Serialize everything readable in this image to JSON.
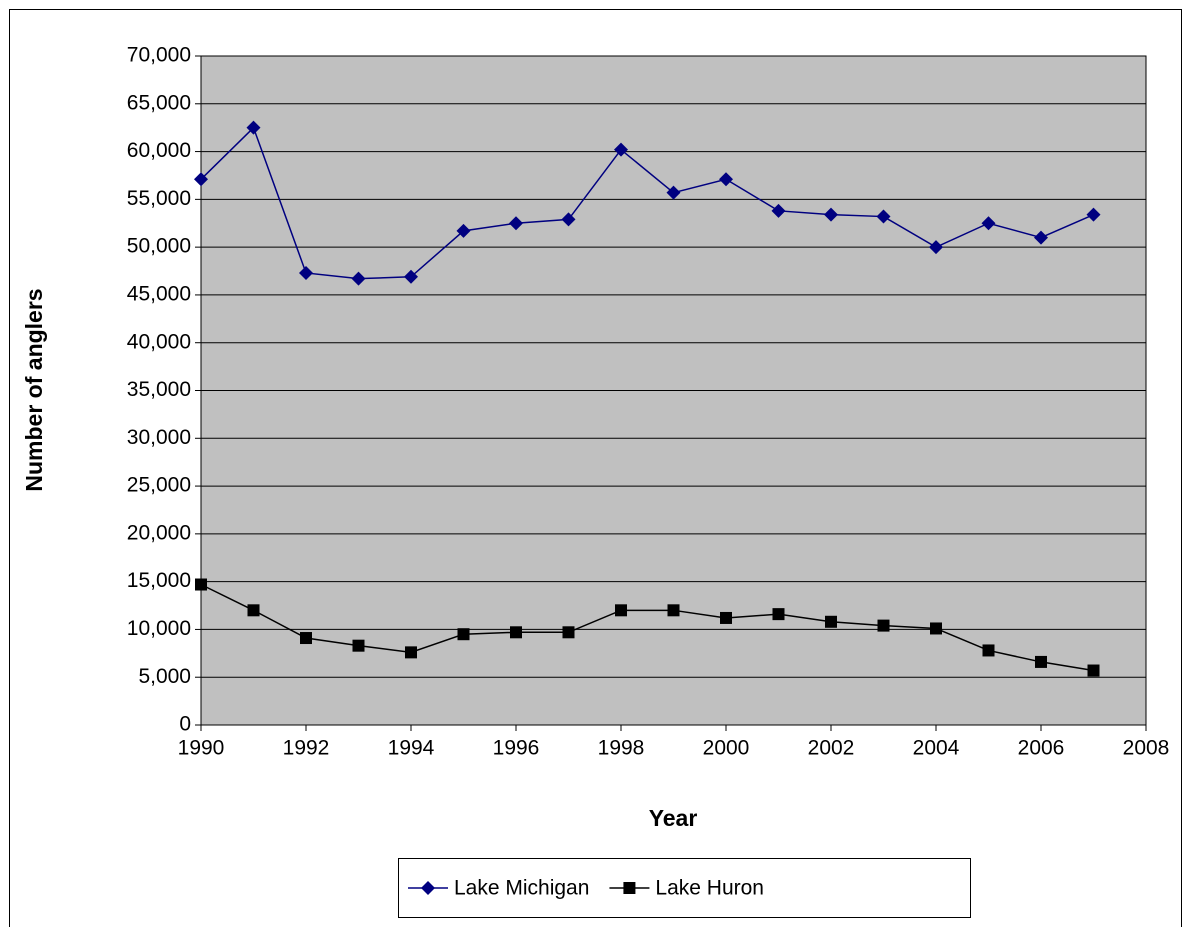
{
  "chart_data": {
    "type": "line",
    "x_label": "Year",
    "y_label": "Number of anglers",
    "x": [
      1990,
      1991,
      1992,
      1993,
      1994,
      1995,
      1996,
      1997,
      1998,
      1999,
      2000,
      2001,
      2002,
      2003,
      2004,
      2005,
      2006,
      2007
    ],
    "series": [
      {
        "name": "Lake Michigan",
        "color": "#000080",
        "marker": "diamond",
        "values": [
          57100,
          62500,
          47300,
          46700,
          46900,
          51700,
          52500,
          52900,
          60200,
          55700,
          57100,
          53800,
          53400,
          53200,
          50000,
          52500,
          51000,
          53400
        ]
      },
      {
        "name": "Lake Huron",
        "color": "#000000",
        "marker": "square",
        "values": [
          14700,
          12000,
          9100,
          8300,
          7600,
          9500,
          9700,
          9700,
          12000,
          12000,
          11200,
          11600,
          10800,
          10400,
          10100,
          7800,
          6600,
          5700
        ]
      }
    ],
    "xlim": [
      1990,
      2008
    ],
    "xticks": [
      1990,
      1992,
      1994,
      1996,
      1998,
      2000,
      2002,
      2004,
      2006,
      2008
    ],
    "ylim": [
      0,
      70000
    ],
    "yticks": [
      0,
      {
        "value": 5000,
        "label": "5,000"
      },
      {
        "value": 10000,
        "label": "10,000"
      },
      {
        "value": 15000,
        "label": "15,000"
      },
      {
        "value": 20000,
        "label": "20,000"
      },
      {
        "value": 25000,
        "label": "25,000"
      },
      {
        "value": 30000,
        "label": "30,000"
      },
      {
        "value": 35000,
        "label": "35,000"
      },
      {
        "value": 40000,
        "label": "40,000"
      },
      {
        "value": 45000,
        "label": "45,000"
      },
      {
        "value": 50000,
        "label": "50,000"
      },
      {
        "value": 55000,
        "label": "55,000"
      },
      {
        "value": 60000,
        "label": "60,000"
      },
      {
        "value": 65000,
        "label": "65,000"
      },
      {
        "value": 70000,
        "label": "70,000"
      }
    ],
    "grid": true,
    "plot_background": "#c0c0c0",
    "legend": "bottom"
  }
}
